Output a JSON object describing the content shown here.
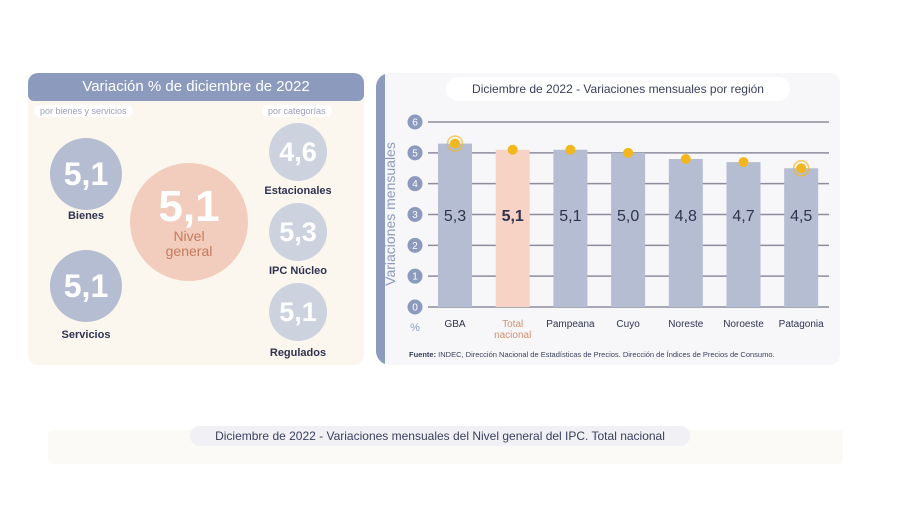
{
  "left": {
    "title": "Variación % de diciembre de 2022",
    "by_goods_label": "por bienes y servicios",
    "by_category_label": "por categorías",
    "bienes": {
      "value": "5,1",
      "label": "Bienes"
    },
    "servicios": {
      "value": "5,1",
      "label": "Servicios"
    },
    "nivel_general": {
      "value": "5,1",
      "label_line1": "Nivel",
      "label_line2": "general"
    },
    "estacionales": {
      "value": "4,6",
      "label": "Estacionales"
    },
    "ipc_nucleo": {
      "value": "5,3",
      "label": "IPC Núcleo"
    },
    "regulados": {
      "value": "5,1",
      "label": "Regulados"
    }
  },
  "right": {
    "title": "Diciembre de 2022 - Variaciones mensuales por región",
    "source_bold": "Fuente:",
    "source_text": " INDEC, Dirección Nacional de Estadísticas de Precios. Dirección de Índices de Precios de Consumo."
  },
  "bottom": {
    "title": "Diciembre de 2022 - Variaciones mensuales del Nivel general del IPC. Total nacional"
  },
  "colors": {
    "bar": "#b5bdd2",
    "bar_highlight": "#f6d3c4",
    "marker": "#f2b71f",
    "grid": "#8d8d9c",
    "axis_bubble": "#8c9bbd"
  },
  "chart_data": {
    "type": "bar",
    "title": "Diciembre de 2022 - Variaciones mensuales por región",
    "ylabel": "Variaciones mensuales",
    "yunit": "%",
    "ylim": [
      0,
      6
    ],
    "yticks": [
      "0",
      "1",
      "2",
      "3",
      "4",
      "5",
      "6"
    ],
    "categories": [
      {
        "label": "GBA",
        "line1": "GBA",
        "line2": ""
      },
      {
        "label": "Total nacional",
        "line1": "Total",
        "line2": "nacional"
      },
      {
        "label": "Pampeana",
        "line1": "Pampeana",
        "line2": ""
      },
      {
        "label": "Cuyo",
        "line1": "Cuyo",
        "line2": ""
      },
      {
        "label": "Noreste",
        "line1": "Noreste",
        "line2": ""
      },
      {
        "label": "Noroeste",
        "line1": "Noroeste",
        "line2": ""
      },
      {
        "label": "Patagonia",
        "line1": "Patagonia",
        "line2": ""
      }
    ],
    "values": [
      5.3,
      5.1,
      5.1,
      5.0,
      4.8,
      4.7,
      4.5
    ],
    "value_labels": [
      "5,3",
      "5,1",
      "5,1",
      "5,0",
      "4,8",
      "4,7",
      "4,5"
    ],
    "highlight_index": 1,
    "ring_markers": [
      0,
      6
    ]
  }
}
